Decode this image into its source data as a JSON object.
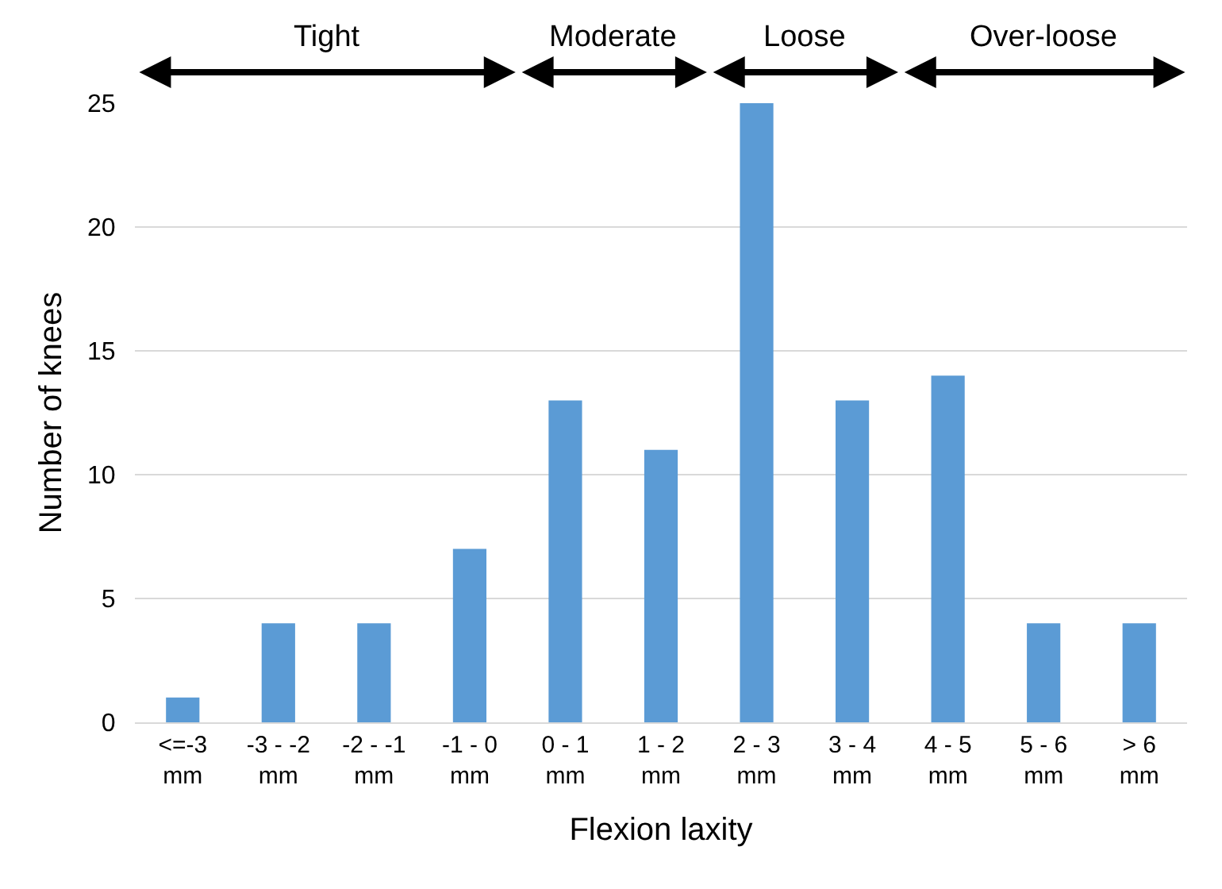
{
  "chart_data": {
    "type": "bar",
    "xlabel": "Flexion laxity",
    "ylabel": "Number of knees",
    "categories": [
      "<=-3 mm",
      "-3 - -2 mm",
      "-2 - -1 mm",
      "-1 - 0 mm",
      "0 - 1 mm",
      "1 - 2 mm",
      "2 - 3 mm",
      "3 - 4 mm",
      "4 - 5 mm",
      "5 - 6 mm",
      "> 6 mm"
    ],
    "values": [
      1,
      4,
      4,
      7,
      13,
      11,
      25,
      13,
      14,
      4,
      4
    ],
    "color": "#5b9bd5",
    "ylim": [
      0,
      25
    ],
    "yticks": [
      0,
      5,
      10,
      15,
      20,
      25
    ],
    "grid": "y",
    "annotations": [
      "Tight",
      "Moderate",
      "Loose",
      "Over-loose"
    ]
  }
}
